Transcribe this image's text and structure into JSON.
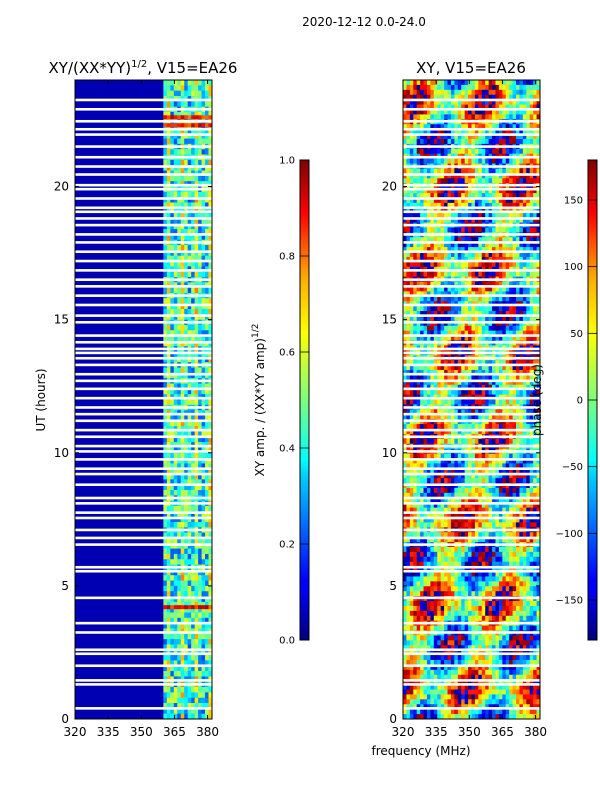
{
  "figure": {
    "suptitle": "2020-12-12 0.0-24.0",
    "xlabel": "frequency (MHz)"
  },
  "chart_data": [
    {
      "type": "heatmap",
      "title_main": "XY/(XX*YY)",
      "title_exponent": "1/2",
      "title_suffix": ", V15=EA26",
      "xlabel": "",
      "ylabel": "UT (hours)",
      "xlim": [
        320,
        382
      ],
      "ylim": [
        0,
        24
      ],
      "xticks": [
        320,
        335,
        350,
        365,
        380
      ],
      "xtick_labels": [
        "320",
        "335",
        "350",
        "365",
        "380"
      ],
      "yticks": [
        0,
        5,
        10,
        15,
        20
      ],
      "ytick_labels": [
        "0",
        "5",
        "10",
        "15",
        "20"
      ],
      "colorbar": {
        "label_main": "XY amp. / (XX*YY amp)",
        "label_exponent": "1/2",
        "range": [
          0.0,
          1.0
        ],
        "ticks": [
          0.0,
          0.2,
          0.4,
          0.6,
          0.8,
          1.0
        ],
        "tick_labels": [
          "0.0",
          "0.2",
          "0.4",
          "0.6",
          "0.8",
          "1.0"
        ],
        "colormap": "jet"
      },
      "features": {
        "low_band_mhz": [
          320,
          360
        ],
        "low_band_value": 0.05,
        "high_band_mhz": [
          360,
          382
        ],
        "high_band_value_range": [
          0.2,
          0.6
        ],
        "hot_rows_ut": [
          4.2,
          22.3,
          22.6
        ]
      }
    },
    {
      "type": "heatmap",
      "title_main": "XY, V15=EA26",
      "xlabel": "",
      "ylabel": "",
      "xlim": [
        320,
        382
      ],
      "ylim": [
        0,
        24
      ],
      "xticks": [
        320,
        335,
        350,
        365,
        380
      ],
      "xtick_labels": [
        "320",
        "335",
        "350",
        "365",
        "380"
      ],
      "yticks": [
        0,
        5,
        10,
        15,
        20
      ],
      "ytick_labels": [
        "0",
        "5",
        "10",
        "15",
        "20"
      ],
      "colorbar": {
        "label_main": "phase (deg)",
        "range": [
          -180,
          180
        ],
        "ticks": [
          -150,
          -100,
          -50,
          0,
          50,
          100,
          150
        ],
        "tick_labels": [
          "−150",
          "−100",
          "−50",
          "0",
          "50",
          "100",
          "150"
        ],
        "colormap": "jet"
      },
      "features": {
        "phase_range_deg": [
          -180,
          180
        ]
      }
    }
  ],
  "gap_rows_ut": [
    0.4,
    1.3,
    1.45,
    2.0,
    2.45,
    2.6,
    3.25,
    3.6,
    4.55,
    5.55,
    5.7,
    6.55,
    6.8,
    7.1,
    7.55,
    7.75,
    8.1,
    8.3,
    8.8,
    9.2,
    9.4,
    9.75,
    10.05,
    10.25,
    10.6,
    10.85,
    11.2,
    11.45,
    11.7,
    12.05,
    12.4,
    12.7,
    12.95,
    13.3,
    13.55,
    13.75,
    13.9,
    14.15,
    14.4,
    14.9,
    15.15,
    15.55,
    15.9,
    16.25,
    16.5,
    16.85,
    17.2,
    17.55,
    17.9,
    18.2,
    18.55,
    18.8,
    19.05,
    19.2,
    19.55,
    19.9,
    20.05,
    20.45,
    20.75,
    21.1,
    21.5,
    21.95,
    22.15,
    22.45,
    22.9,
    23.25
  ]
}
